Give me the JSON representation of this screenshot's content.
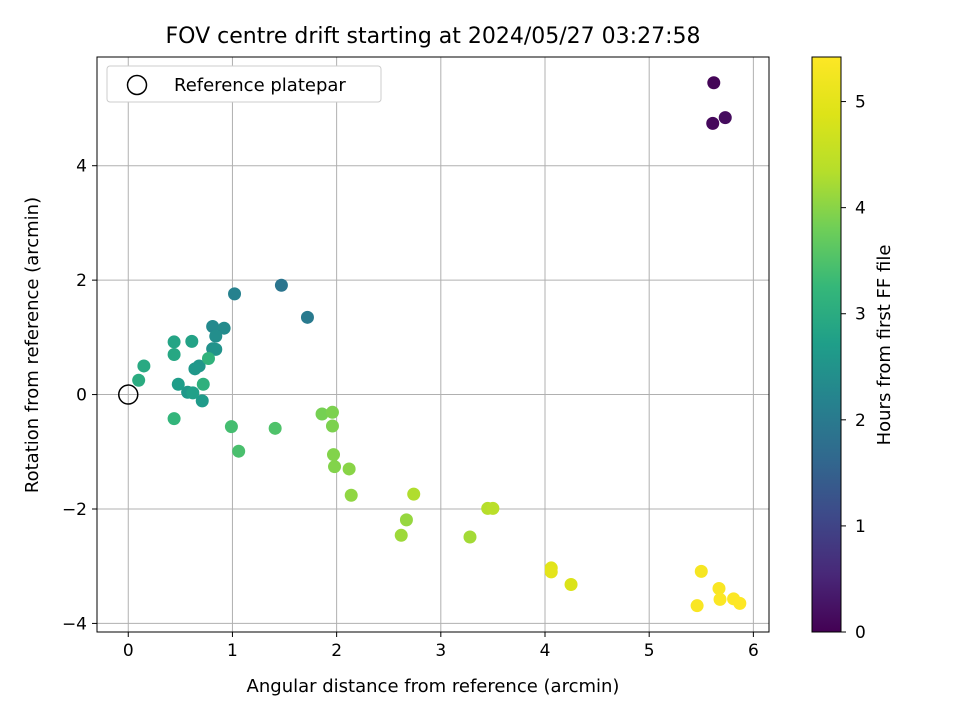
{
  "chart_data": {
    "type": "scatter",
    "title": "FOV centre drift starting at 2024/05/27 03:27:58",
    "xlabel": "Angular distance from reference (arcmin)",
    "ylabel": "Rotation from reference (arcmin)",
    "xlim": [
      -0.3,
      6.15
    ],
    "ylim": [
      -4.15,
      5.9
    ],
    "xticks": [
      0,
      1,
      2,
      3,
      4,
      5,
      6
    ],
    "yticks": [
      -4,
      -2,
      0,
      2,
      4
    ],
    "grid": true,
    "legend": {
      "position": "top-left",
      "entries": [
        "Reference platepar"
      ]
    },
    "reference_point": {
      "x": 0,
      "y": 0
    },
    "colorbar": {
      "label": "Hours from first FF file",
      "colormap": "viridis",
      "range": [
        0,
        5.42
      ],
      "ticks": [
        0,
        1,
        2,
        3,
        4,
        5
      ]
    },
    "points": [
      {
        "x": 5.62,
        "y": 5.45,
        "c": 0.05
      },
      {
        "x": 5.61,
        "y": 4.74,
        "c": 0.1
      },
      {
        "x": 5.73,
        "y": 4.84,
        "c": 0.15
      },
      {
        "x": 1.47,
        "y": 1.91,
        "c": 1.9
      },
      {
        "x": 1.72,
        "y": 1.35,
        "c": 2.0
      },
      {
        "x": 1.02,
        "y": 1.76,
        "c": 2.15
      },
      {
        "x": 0.81,
        "y": 1.19,
        "c": 2.3
      },
      {
        "x": 0.92,
        "y": 1.16,
        "c": 2.35
      },
      {
        "x": 0.84,
        "y": 1.02,
        "c": 2.4
      },
      {
        "x": 0.81,
        "y": 0.8,
        "c": 2.45
      },
      {
        "x": 0.84,
        "y": 0.79,
        "c": 2.5
      },
      {
        "x": 0.68,
        "y": 0.5,
        "c": 2.55
      },
      {
        "x": 0.64,
        "y": 0.45,
        "c": 2.6
      },
      {
        "x": 0.57,
        "y": 0.04,
        "c": 2.6
      },
      {
        "x": 0.71,
        "y": -0.11,
        "c": 2.65
      },
      {
        "x": 0.48,
        "y": 0.18,
        "c": 2.7
      },
      {
        "x": 0.62,
        "y": 0.03,
        "c": 2.75
      },
      {
        "x": 0.61,
        "y": 0.93,
        "c": 2.8
      },
      {
        "x": 0.44,
        "y": 0.92,
        "c": 2.85
      },
      {
        "x": 0.44,
        "y": 0.7,
        "c": 2.9
      },
      {
        "x": 0.15,
        "y": 0.5,
        "c": 2.95
      },
      {
        "x": 0.1,
        "y": 0.25,
        "c": 3.0
      },
      {
        "x": 0.72,
        "y": 0.18,
        "c": 3.1
      },
      {
        "x": 0.77,
        "y": 0.63,
        "c": 3.15
      },
      {
        "x": 0.44,
        "y": -0.42,
        "c": 3.2
      },
      {
        "x": 0.99,
        "y": -0.56,
        "c": 3.4
      },
      {
        "x": 1.06,
        "y": -0.99,
        "c": 3.45
      },
      {
        "x": 1.41,
        "y": -0.59,
        "c": 3.5
      },
      {
        "x": 1.86,
        "y": -0.34,
        "c": 3.85
      },
      {
        "x": 1.96,
        "y": -0.31,
        "c": 3.9
      },
      {
        "x": 1.96,
        "y": -0.55,
        "c": 3.9
      },
      {
        "x": 1.97,
        "y": -1.05,
        "c": 3.95
      },
      {
        "x": 1.98,
        "y": -1.26,
        "c": 3.95
      },
      {
        "x": 2.12,
        "y": -1.3,
        "c": 4.0
      },
      {
        "x": 2.14,
        "y": -1.76,
        "c": 4.05
      },
      {
        "x": 2.74,
        "y": -1.74,
        "c": 4.3
      },
      {
        "x": 2.67,
        "y": -2.19,
        "c": 4.1
      },
      {
        "x": 2.62,
        "y": -2.46,
        "c": 4.15
      },
      {
        "x": 3.28,
        "y": -2.49,
        "c": 4.2
      },
      {
        "x": 3.45,
        "y": -1.99,
        "c": 4.35
      },
      {
        "x": 3.5,
        "y": -1.99,
        "c": 4.4
      },
      {
        "x": 4.06,
        "y": -3.03,
        "c": 4.95
      },
      {
        "x": 4.06,
        "y": -3.1,
        "c": 5.0
      },
      {
        "x": 4.25,
        "y": -3.32,
        "c": 4.85
      },
      {
        "x": 5.5,
        "y": -3.09,
        "c": 5.3
      },
      {
        "x": 5.46,
        "y": -3.69,
        "c": 5.35
      },
      {
        "x": 5.67,
        "y": -3.39,
        "c": 5.35
      },
      {
        "x": 5.68,
        "y": -3.58,
        "c": 5.38
      },
      {
        "x": 5.81,
        "y": -3.57,
        "c": 5.4
      },
      {
        "x": 5.87,
        "y": -3.65,
        "c": 5.42
      }
    ]
  }
}
